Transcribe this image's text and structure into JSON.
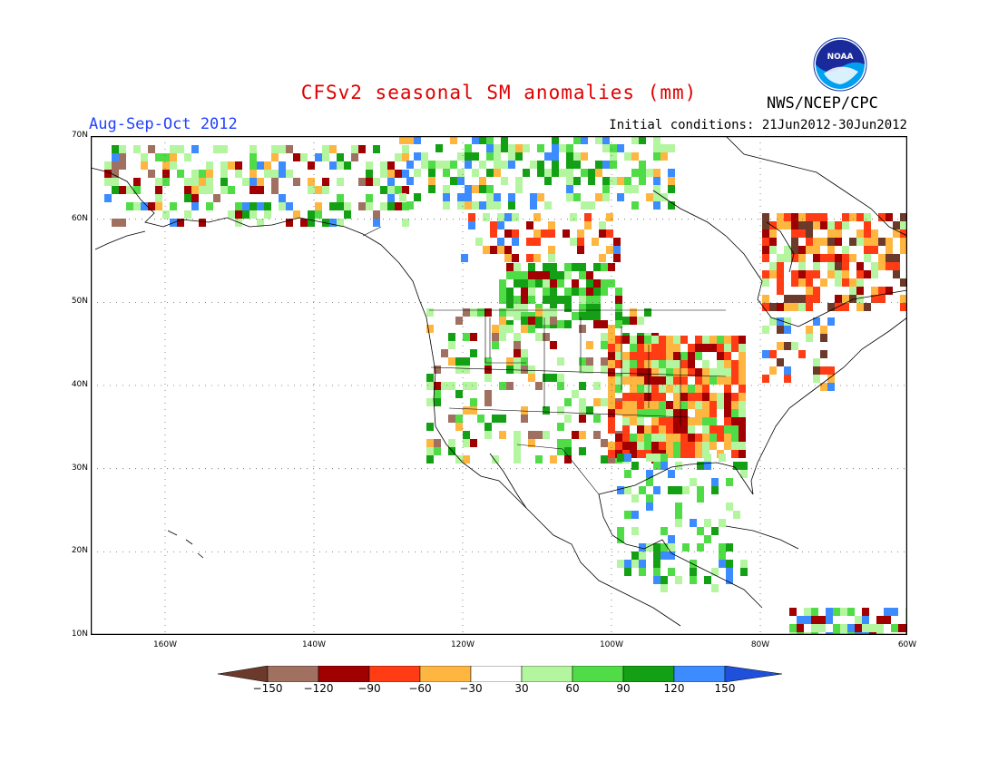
{
  "title": "CFSv2 seasonal SM anomalies (mm)",
  "season": "Aug-Sep-Oct 2012",
  "initial_conditions": "Initial conditions: 21Jun2012-30Jun2012",
  "agency": "NWS/NCEP/CPC",
  "logo_text": "NOAA",
  "lat_labels": [
    "70N",
    "60N",
    "50N",
    "40N",
    "30N",
    "20N",
    "10N"
  ],
  "lon_labels": [
    "160W",
    "140W",
    "120W",
    "100W",
    "80W",
    "60W"
  ],
  "colorbar": {
    "labels": [
      "-150",
      "-120",
      "-90",
      "-60",
      "-30",
      "30",
      "60",
      "90",
      "120",
      "150"
    ],
    "colors": [
      "#6b3a2a",
      "#a07060",
      "#a00000",
      "#ff3c14",
      "#ffb640",
      "#ffffff",
      "#b4f5a0",
      "#50dc46",
      "#14a014",
      "#3c8cff",
      "#1e50dc"
    ]
  },
  "colors": {
    "title": "#e00000",
    "season": "#2040ff",
    "logo_blue": "#00a0f0"
  }
}
